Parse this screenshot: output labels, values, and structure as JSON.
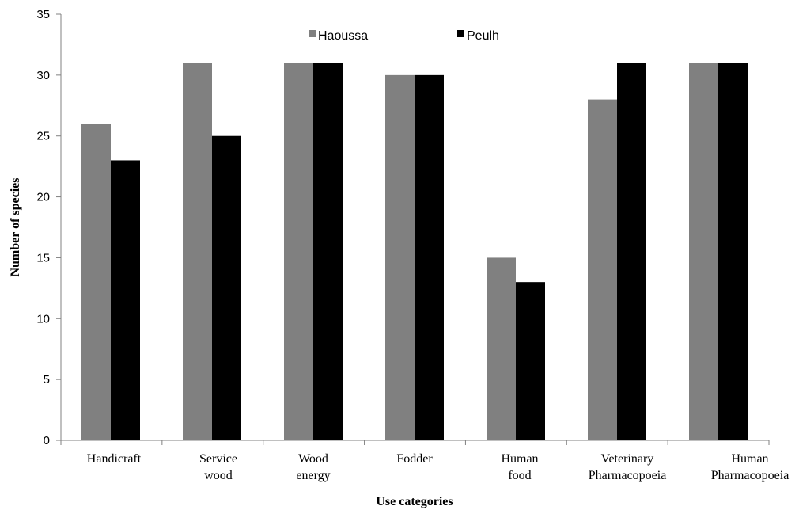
{
  "chart_data": {
    "type": "bar",
    "title": "",
    "xlabel": "Use categories",
    "ylabel": "Number of species",
    "ylim": [
      0,
      35
    ],
    "yticks": [
      0,
      5,
      10,
      15,
      20,
      25,
      30,
      35
    ],
    "grid": false,
    "legend_position": "top",
    "categories": [
      [
        "Handicraft"
      ],
      [
        "Service",
        "wood"
      ],
      [
        "Wood",
        "energy"
      ],
      [
        "Fodder"
      ],
      [
        "Human",
        "food"
      ],
      [
        "Veterinary",
        "Pharmacopoeia"
      ],
      [
        "Human",
        "Pharmacopoeia"
      ]
    ],
    "series": [
      {
        "name": "Haoussa",
        "color": "#808080",
        "values": [
          26,
          31,
          31,
          30,
          15,
          28,
          31
        ]
      },
      {
        "name": "Peulh",
        "color": "#000000",
        "values": [
          23,
          25,
          31,
          30,
          13,
          31,
          31
        ]
      }
    ]
  }
}
